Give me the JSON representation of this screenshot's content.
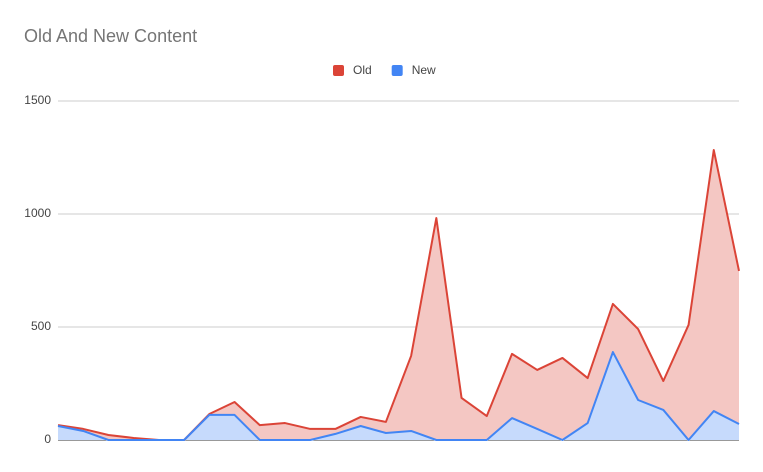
{
  "chart_data": {
    "type": "area",
    "title": "Old And New Content",
    "categories": [
      null,
      null,
      null,
      null,
      null,
      null,
      null,
      null,
      null,
      null,
      null,
      null,
      null,
      null,
      null,
      null,
      null,
      null,
      null,
      null,
      null,
      null,
      null,
      null,
      null,
      null,
      null,
      null
    ],
    "series": [
      {
        "name": "Old",
        "color": "#db4437",
        "values": [
          66,
          49,
          22,
          9,
          0,
          0,
          115,
          168,
          66,
          75,
          49,
          49,
          102,
          80,
          372,
          982,
          186,
          106,
          381,
          310,
          363,
          274,
          602,
          491,
          261,
          509,
          1283,
          748
        ]
      },
      {
        "name": "New",
        "color": "#4285f4",
        "values": [
          62,
          40,
          0,
          0,
          0,
          0,
          111,
          111,
          0,
          0,
          0,
          27,
          62,
          31,
          40,
          0,
          0,
          0,
          97,
          49,
          0,
          75,
          389,
          177,
          133,
          0,
          128,
          71
        ]
      }
    ],
    "ylim": [
      0,
      1500
    ],
    "yticks": [
      0,
      500,
      1000,
      1500
    ],
    "grid": true,
    "legend": "top"
  }
}
